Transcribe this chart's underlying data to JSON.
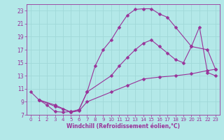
{
  "background_color": "#b3e8e8",
  "grid_color": "#a0d8d8",
  "line_color": "#993399",
  "marker_style": "D",
  "marker_size": 2.5,
  "xlabel": "Windchill (Refroidissement éolien,°C)",
  "ylabel": "",
  "xlim": [
    -0.5,
    23.5
  ],
  "ylim": [
    7,
    24
  ],
  "yticks": [
    7,
    9,
    11,
    13,
    15,
    17,
    19,
    21,
    23
  ],
  "xticks": [
    0,
    1,
    2,
    3,
    4,
    5,
    6,
    7,
    8,
    9,
    10,
    11,
    12,
    13,
    14,
    15,
    16,
    17,
    18,
    19,
    20,
    21,
    22,
    23
  ],
  "series": [
    {
      "x": [
        0,
        1,
        2,
        3,
        4,
        5,
        6,
        7,
        8,
        9,
        10,
        11,
        12,
        13,
        14,
        15,
        16,
        17,
        18,
        20,
        21,
        22,
        23
      ],
      "y": [
        10.5,
        9.3,
        8.5,
        7.5,
        7.4,
        7.5,
        7.8,
        10.5,
        14.5,
        17.0,
        18.5,
        20.5,
        22.3,
        23.2,
        23.3,
        23.3,
        22.5,
        22.0,
        20.5,
        17.5,
        20.5,
        13.5,
        13.0
      ]
    },
    {
      "x": [
        1,
        3,
        5,
        6,
        7,
        10,
        11,
        12,
        13,
        14,
        15,
        16,
        17,
        18,
        19,
        20,
        22,
        23
      ],
      "y": [
        9.3,
        8.5,
        7.4,
        7.8,
        10.5,
        13.0,
        14.5,
        15.8,
        17.0,
        18.0,
        18.5,
        17.5,
        16.5,
        15.5,
        15.0,
        17.5,
        17.0,
        14.0
      ]
    },
    {
      "x": [
        1,
        3,
        4,
        5,
        6,
        7,
        10,
        12,
        14,
        16,
        18,
        20,
        22,
        23
      ],
      "y": [
        9.3,
        8.3,
        7.9,
        7.4,
        7.6,
        9.0,
        10.5,
        11.5,
        12.5,
        12.8,
        13.0,
        13.3,
        13.8,
        14.0
      ]
    }
  ]
}
